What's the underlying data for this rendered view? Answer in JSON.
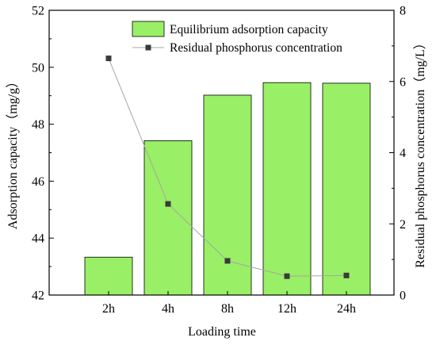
{
  "chart_data": {
    "type": "bar",
    "categories": [
      "2h",
      "4h",
      "8h",
      "12h",
      "24h"
    ],
    "series": [
      {
        "name": "Equilibrium adsorption capacity",
        "type": "bar",
        "axis": "left",
        "color": "#99ef66",
        "values": [
          43.33,
          47.42,
          49.02,
          49.46,
          49.44
        ]
      },
      {
        "name": "Residual phosphorus concentration",
        "type": "line",
        "axis": "right",
        "color": "#3a3a3a",
        "line_color": "#a6a6a6",
        "values": [
          6.65,
          2.56,
          0.96,
          0.53,
          0.55
        ]
      }
    ],
    "xlabel": "Loading time",
    "ylabel": "Adsorption capacity（mg/g）",
    "ylabel_right": "Residual phosphorus concentration（mg/L）",
    "ylim": [
      42,
      52
    ],
    "ylim_right": [
      0,
      8
    ],
    "yticks": [
      "42",
      "44",
      "46",
      "48",
      "50",
      "52"
    ],
    "yticks_right": [
      "0",
      "2",
      "4",
      "6",
      "8"
    ],
    "grid": false,
    "legend_position": "top-right"
  }
}
